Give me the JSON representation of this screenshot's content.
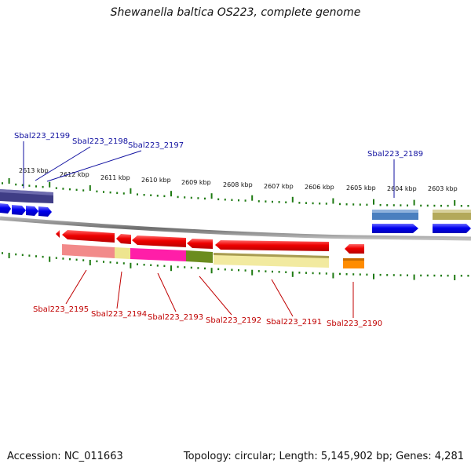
{
  "title": "Shewanella baltica OS223, complete genome",
  "footer": {
    "accession": "Accession: NC_011663",
    "topology": "Topology: circular; Length: 5,145,902 bp; Genes: 4,281"
  },
  "colors": {
    "tick": "#1e7a12",
    "backbone": "#8a8a8a",
    "forward_gene": "#0000ee",
    "reverse_gene": "#ee0000",
    "forward_label": "#1010a0",
    "reverse_label": "#c00000"
  },
  "scale": {
    "unit": "kbp",
    "labels": [
      "2613 kbp",
      "2612 kbp",
      "2611 kbp",
      "2610 kbp",
      "2609 kbp",
      "2608 kbp",
      "2607 kbp",
      "2606 kbp",
      "2605 kbp",
      "2604 kbp",
      "2603 kbp"
    ]
  },
  "genes": {
    "forward": [
      {
        "id": "fwd-1"
      },
      {
        "id": "fwd-2"
      },
      {
        "id": "fwd-3"
      },
      {
        "id": "fwd-4"
      },
      {
        "id": "fwd-5"
      },
      {
        "id": "fwd-6"
      }
    ],
    "reverse": [
      {
        "id": "rev-1"
      },
      {
        "id": "rev-2"
      },
      {
        "id": "rev-3"
      },
      {
        "id": "rev-4"
      },
      {
        "id": "rev-5"
      },
      {
        "id": "rev-6"
      }
    ]
  },
  "annotation_bars": {
    "top": [
      {
        "color": "#3f3d86"
      },
      {
        "color": "#3f3d86"
      },
      {
        "color": "#4a7fbf"
      },
      {
        "color": "#b3a95a"
      }
    ],
    "bottom": [
      {
        "color": "#f28a8a"
      },
      {
        "color": "#eee58f"
      },
      {
        "color": "#ff1ea8"
      },
      {
        "color": "#6b8c1f"
      },
      {
        "color": "#f2eaa0"
      },
      {
        "color": "#ff8c00"
      }
    ]
  },
  "labels": {
    "forward": [
      {
        "text": "Sbal223_2199"
      },
      {
        "text": "Sbal223_2198"
      },
      {
        "text": "Sbal223_2197"
      },
      {
        "text": "Sbal223_2189"
      }
    ],
    "reverse": [
      {
        "text": "Sbal223_2195"
      },
      {
        "text": "Sbal223_2194"
      },
      {
        "text": "Sbal223_2193"
      },
      {
        "text": "Sbal223_2192"
      },
      {
        "text": "Sbal223_2191"
      },
      {
        "text": "Sbal223_2190"
      }
    ]
  }
}
